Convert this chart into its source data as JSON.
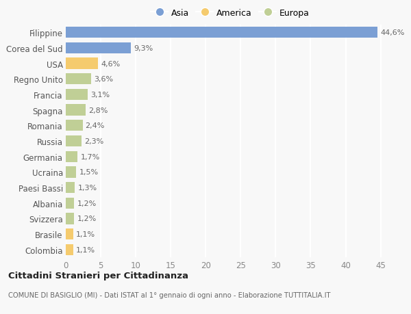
{
  "countries": [
    "Filippine",
    "Corea del Sud",
    "USA",
    "Regno Unito",
    "Francia",
    "Spagna",
    "Romania",
    "Russia",
    "Germania",
    "Ucraina",
    "Paesi Bassi",
    "Albania",
    "Svizzera",
    "Brasile",
    "Colombia"
  ],
  "values": [
    44.6,
    9.3,
    4.6,
    3.6,
    3.1,
    2.8,
    2.4,
    2.3,
    1.7,
    1.5,
    1.3,
    1.2,
    1.2,
    1.1,
    1.1
  ],
  "labels": [
    "44,6%",
    "9,3%",
    "4,6%",
    "3,6%",
    "3,1%",
    "2,8%",
    "2,4%",
    "2,3%",
    "1,7%",
    "1,5%",
    "1,3%",
    "1,2%",
    "1,2%",
    "1,1%",
    "1,1%"
  ],
  "continents": [
    "Asia",
    "Asia",
    "America",
    "Europa",
    "Europa",
    "Europa",
    "Europa",
    "Europa",
    "Europa",
    "Europa",
    "Europa",
    "Europa",
    "Europa",
    "America",
    "America"
  ],
  "colors": {
    "Asia": "#7b9fd4",
    "America": "#f5cb6e",
    "Europa": "#c0cf96"
  },
  "legend": [
    {
      "label": "Asia",
      "color": "#7b9fd4"
    },
    {
      "label": "America",
      "color": "#f5cb6e"
    },
    {
      "label": "Europa",
      "color": "#c0cf96"
    }
  ],
  "title1": "Cittadini Stranieri per Cittadinanza",
  "title2": "COMUNE DI BASIGLIO (MI) - Dati ISTAT al 1° gennaio di ogni anno - Elaborazione TUTTITALIA.IT",
  "xlim": [
    0,
    47
  ],
  "xticks": [
    0,
    5,
    10,
    15,
    20,
    25,
    30,
    35,
    40,
    45
  ],
  "background_color": "#f8f8f8",
  "grid_color": "#ffffff",
  "bar_height": 0.72,
  "label_fontsize": 8.0,
  "ytick_fontsize": 8.5,
  "xtick_fontsize": 8.5
}
